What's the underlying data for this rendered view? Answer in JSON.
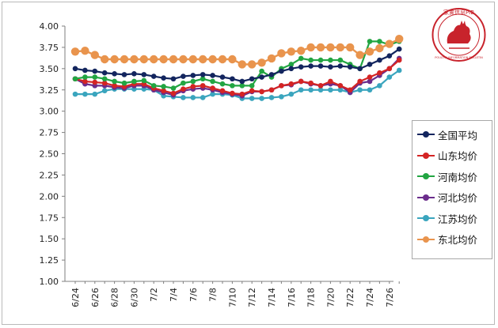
{
  "chart_data": {
    "type": "line",
    "title": "",
    "xlabel": "",
    "ylabel": "",
    "ylim": [
      1.0,
      4.0
    ],
    "yticks": [
      "4.00",
      "3.75",
      "3.50",
      "3.25",
      "3.00",
      "2.75",
      "2.50",
      "2.25",
      "2.00",
      "1.75",
      "1.50",
      "1.25",
      "1.00"
    ],
    "x": [
      "6/24",
      "6/25",
      "6/26",
      "6/27",
      "6/28",
      "6/29",
      "6/30",
      "7/1",
      "7/2",
      "7/3",
      "7/4",
      "7/5",
      "7/6",
      "7/7",
      "7/8",
      "7/9",
      "7/10",
      "7/11",
      "7/12",
      "7/13",
      "7/14",
      "7/15",
      "7/16",
      "7/17",
      "7/18",
      "7/19",
      "7/20",
      "7/21",
      "7/22",
      "7/23",
      "7/24",
      "7/25",
      "7/26",
      "7/27"
    ],
    "xtick_labels": [
      "6/24",
      "6/26",
      "6/28",
      "6/30",
      "7/2",
      "7/4",
      "7/6",
      "7/8",
      "7/10",
      "7/12",
      "7/14",
      "7/16",
      "7/18",
      "7/20",
      "7/22",
      "7/24",
      "7/26"
    ],
    "grid": false,
    "legend_position": "right",
    "series": [
      {
        "name": "全国平均",
        "color": "#13255e",
        "values": [
          3.5,
          3.48,
          3.47,
          3.45,
          3.44,
          3.43,
          3.44,
          3.43,
          3.41,
          3.39,
          3.38,
          3.41,
          3.42,
          3.43,
          3.42,
          3.4,
          3.38,
          3.35,
          3.38,
          3.4,
          3.43,
          3.47,
          3.5,
          3.52,
          3.53,
          3.53,
          3.52,
          3.53,
          3.52,
          3.5,
          3.55,
          3.6,
          3.65,
          3.73
        ]
      },
      {
        "name": "山东均价",
        "color": "#d42424",
        "values": [
          3.38,
          3.35,
          3.34,
          3.33,
          3.3,
          3.29,
          3.32,
          3.32,
          3.27,
          3.24,
          3.21,
          3.26,
          3.29,
          3.3,
          3.27,
          3.24,
          3.21,
          3.2,
          3.24,
          3.23,
          3.25,
          3.3,
          3.32,
          3.35,
          3.33,
          3.3,
          3.35,
          3.3,
          3.25,
          3.35,
          3.4,
          3.45,
          3.5,
          3.6
        ]
      },
      {
        "name": "河南均价",
        "color": "#22a542",
        "values": [
          3.38,
          3.4,
          3.4,
          3.38,
          3.35,
          3.33,
          3.35,
          3.36,
          3.3,
          3.29,
          3.27,
          3.33,
          3.35,
          3.38,
          3.35,
          3.32,
          3.3,
          3.3,
          3.3,
          3.47,
          3.4,
          3.5,
          3.55,
          3.62,
          3.6,
          3.6,
          3.6,
          3.6,
          3.55,
          3.5,
          3.82,
          3.82,
          3.78,
          3.82
        ]
      },
      {
        "name": "河北均价",
        "color": "#6b2d8c",
        "values": [
          3.38,
          3.32,
          3.3,
          3.3,
          3.28,
          3.27,
          3.3,
          3.3,
          3.25,
          3.22,
          3.19,
          3.24,
          3.26,
          3.27,
          3.25,
          3.22,
          3.2,
          3.18,
          3.23,
          3.23,
          3.25,
          3.3,
          3.31,
          3.35,
          3.32,
          3.3,
          3.32,
          3.3,
          3.22,
          3.33,
          3.35,
          3.42,
          3.5,
          3.62
        ]
      },
      {
        "name": "江苏均价",
        "color": "#3aa5be",
        "values": [
          3.2,
          3.2,
          3.2,
          3.24,
          3.26,
          3.26,
          3.26,
          3.26,
          3.25,
          3.18,
          3.17,
          3.16,
          3.16,
          3.16,
          3.2,
          3.2,
          3.19,
          3.15,
          3.15,
          3.15,
          3.16,
          3.17,
          3.2,
          3.25,
          3.25,
          3.25,
          3.25,
          3.25,
          3.22,
          3.25,
          3.25,
          3.3,
          3.4,
          3.48
        ]
      },
      {
        "name": "东北均价",
        "color": "#e9944d",
        "values": [
          3.7,
          3.71,
          3.66,
          3.61,
          3.61,
          3.61,
          3.61,
          3.61,
          3.61,
          3.61,
          3.61,
          3.61,
          3.61,
          3.61,
          3.61,
          3.61,
          3.61,
          3.55,
          3.55,
          3.57,
          3.62,
          3.68,
          3.7,
          3.71,
          3.75,
          3.75,
          3.75,
          3.75,
          3.75,
          3.66,
          3.7,
          3.74,
          3.79,
          3.85
        ]
      }
    ]
  },
  "logo": {
    "text_top": "家禽信息PIB",
    "text_bottom": "POULTRY INFORMATION BULLETIN"
  }
}
